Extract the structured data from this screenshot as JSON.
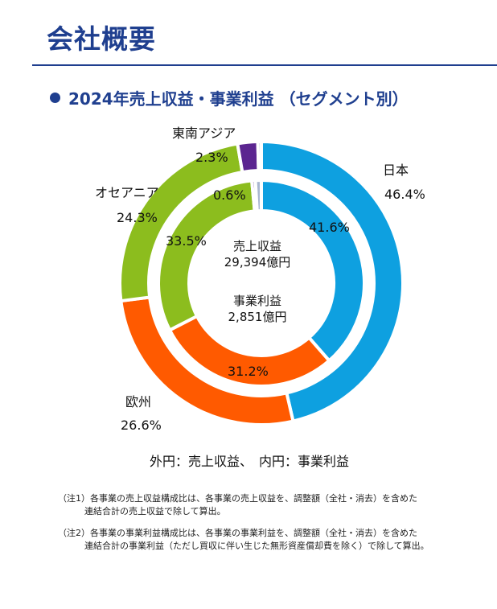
{
  "header": {
    "title": "会社概要"
  },
  "section": {
    "title": "2024年売上収益・事業利益 （セグメント別）"
  },
  "chart_data": {
    "type": "donut",
    "title": "2024年売上収益・事業利益 （セグメント別）",
    "categories": [
      "日本",
      "欧州",
      "オセアニア",
      "東南アジア",
      ""
    ],
    "colors": [
      "#0ea0e0",
      "#ff5a00",
      "#8cbd1e",
      "#5b2590",
      "#a9b6d0"
    ],
    "series": [
      {
        "name": "外円：売上収益",
        "values": [
          46.4,
          26.6,
          24.3,
          2.3,
          0.4
        ],
        "labels": [
          "46.4%",
          "26.6%",
          "24.3%",
          "2.3%",
          ""
        ]
      },
      {
        "name": "内円：事業利益",
        "values": [
          41.6,
          31.2,
          33.5,
          0.6,
          1.0
        ],
        "labels": [
          "41.6%",
          "31.2%",
          "33.5%",
          "0.6%",
          ""
        ]
      }
    ],
    "center": {
      "revenue_label": "売上収益",
      "revenue_value": "29,394億円",
      "profit_label": "事業利益",
      "profit_value": "2,851億円"
    },
    "caption": "外円：売上収益、　内円：事業利益"
  },
  "notes": [
    {
      "mark": "（注1）",
      "line1": "各事業の売上収益構成比は、各事業の売上収益を、調整額（全社・消去）を含めた",
      "line2": "連結合計の売上収益で除して算出。"
    },
    {
      "mark": "（注2）",
      "line1": "各事業の事業利益構成比は、各事業の事業利益を、調整額（全社・消去）を含めた",
      "line2": "連結合計の事業利益（ただし買収に伴い生じた無形資産償却費を除く）で除して算出。"
    }
  ]
}
